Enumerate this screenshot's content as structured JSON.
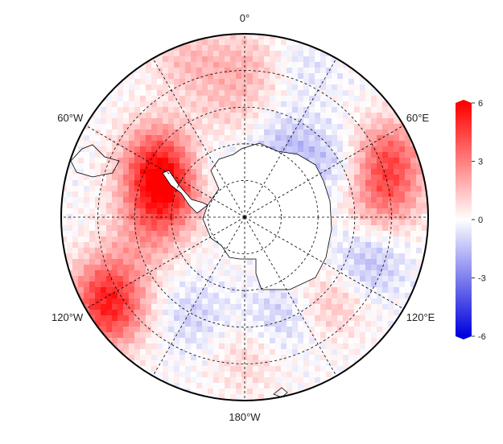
{
  "chart_data": {
    "type": "heatmap",
    "projection": "south-polar-stereographic",
    "title": "",
    "longitude_labels": [
      {
        "lon": 0,
        "text": "0°"
      },
      {
        "lon": -60,
        "text": "60°W"
      },
      {
        "lon": 60,
        "text": "60°E"
      },
      {
        "lon": -120,
        "text": "120°W"
      },
      {
        "lon": 120,
        "text": "120°E"
      },
      {
        "lon": 180,
        "text": "180°W"
      }
    ],
    "graticule_latitudes": [
      -80,
      -70,
      -60,
      -50
    ],
    "graticule_longitudes": [
      0,
      30,
      60,
      90,
      120,
      150,
      180,
      210,
      240,
      270,
      300,
      330
    ],
    "outer_latitude": -40,
    "colorbar": {
      "min": -6,
      "max": 6,
      "ticks": [
        6,
        3,
        0,
        -3,
        -6
      ],
      "colors": [
        "#0000dd",
        "#ffffff",
        "#ff0000"
      ],
      "extend": "both"
    },
    "anomaly_features": [
      {
        "lon": 30,
        "lat": -68,
        "value": -1.5
      },
      {
        "lon": 60,
        "lat": -60,
        "value": -1.2
      },
      {
        "lon": 65,
        "lat": -48,
        "value": 3.5
      },
      {
        "lon": 80,
        "lat": -52,
        "value": 3.0
      },
      {
        "lon": 110,
        "lat": -55,
        "value": -1.5
      },
      {
        "lon": 135,
        "lat": -58,
        "value": 1.5
      },
      {
        "lon": 160,
        "lat": -62,
        "value": -1.2
      },
      {
        "lon": 180,
        "lat": -52,
        "value": 1.0
      },
      {
        "lon": -150,
        "lat": -60,
        "value": -1.0
      },
      {
        "lon": -125,
        "lat": -44,
        "value": 3.5
      },
      {
        "lon": -115,
        "lat": -48,
        "value": 3.0
      },
      {
        "lon": -100,
        "lat": -62,
        "value": 1.5
      },
      {
        "lon": -80,
        "lat": -66,
        "value": 2.0
      },
      {
        "lon": -70,
        "lat": -66,
        "value": 2.5
      },
      {
        "lon": -60,
        "lat": -62,
        "value": 3.0
      },
      {
        "lon": -50,
        "lat": -58,
        "value": 1.5
      },
      {
        "lon": -20,
        "lat": -44,
        "value": 1.5
      },
      {
        "lon": -10,
        "lat": -60,
        "value": 1.0
      },
      {
        "lon": 0,
        "lat": -48,
        "value": 1.5
      },
      {
        "lon": -35,
        "lat": -72,
        "value": -0.8
      },
      {
        "lon": 20,
        "lat": -45,
        "value": -0.6
      }
    ]
  }
}
